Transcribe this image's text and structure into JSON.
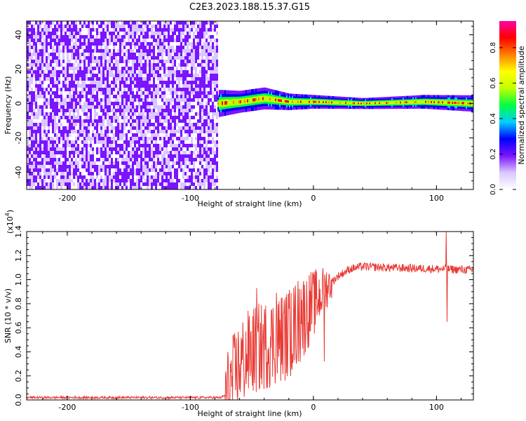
{
  "title": "C2E3.2023.188.15.37.G15",
  "chart_data": [
    {
      "type": "heatmap",
      "xlabel": "Height of straight line (km)",
      "ylabel": "Frequency (Hz)",
      "xlim": [
        -233,
        130
      ],
      "ylim": [
        -50,
        48
      ],
      "xticks": [
        -200,
        -100,
        0,
        100
      ],
      "yticks": [
        -40,
        -20,
        0,
        20,
        40
      ],
      "noise_region_x": [
        -233,
        -78
      ],
      "signal_band": [
        {
          "x": -78,
          "f": 0,
          "width_hz": 5
        },
        {
          "x": -60,
          "f": 1,
          "width_hz": 4
        },
        {
          "x": -40,
          "f": 3,
          "width_hz": 4
        },
        {
          "x": -20,
          "f": 1,
          "width_hz": 3
        },
        {
          "x": 0,
          "f": 1,
          "width_hz": 2.5
        },
        {
          "x": 40,
          "f": 0,
          "width_hz": 2
        },
        {
          "x": 90,
          "f": 1,
          "width_hz": 2.5
        },
        {
          "x": 130,
          "f": 0,
          "width_hz": 3
        }
      ],
      "colorbar": {
        "label": "Normalized spectral amplitude",
        "range": [
          0,
          0.95
        ],
        "ticks": [
          "0.0",
          "0.2",
          "0.4",
          "0.6",
          "0.8"
        ],
        "colors": [
          "#ffffff",
          "#d9c8ff",
          "#7b14ff",
          "#0000ff",
          "#00d0ff",
          "#00ff40",
          "#c0ff00",
          "#ffff00",
          "#ff8000",
          "#ff0000",
          "#ff00a0"
        ]
      }
    },
    {
      "type": "line",
      "xlabel": "Height of straight line (km)",
      "ylabel": "SNR (10 * v/v)",
      "y_multiplier": "(x10",
      "y_exponent": "4",
      "y_multiplier_close": ")",
      "xlim": [
        -233,
        130
      ],
      "ylim": [
        0,
        1.4
      ],
      "xticks": [
        -200,
        -100,
        0,
        100
      ],
      "yticks": [
        "0.0",
        "0.2",
        "0.4",
        "0.6",
        "0.8",
        "1.0",
        "1.2",
        "1.4"
      ],
      "color": "#e83a34",
      "series_profile": [
        {
          "x": -233,
          "y": 0.02
        },
        {
          "x": -75,
          "y": 0.02
        },
        {
          "x": -70,
          "y": 0.05
        },
        {
          "x": -66,
          "y": 0.15
        },
        {
          "x": -60,
          "y": 0.3
        },
        {
          "x": -50,
          "y": 0.4
        },
        {
          "x": -40,
          "y": 0.45
        },
        {
          "x": -30,
          "y": 0.5
        },
        {
          "x": -20,
          "y": 0.55
        },
        {
          "x": -10,
          "y": 0.68
        },
        {
          "x": 0,
          "y": 0.8
        },
        {
          "x": 10,
          "y": 0.93
        },
        {
          "x": 20,
          "y": 1.03
        },
        {
          "x": 30,
          "y": 1.09
        },
        {
          "x": 40,
          "y": 1.11
        },
        {
          "x": 60,
          "y": 1.1
        },
        {
          "x": 100,
          "y": 1.09
        },
        {
          "x": 130,
          "y": 1.08
        }
      ],
      "spikes": [
        {
          "x": -46,
          "y": 0.93
        },
        {
          "x": -30,
          "y": 0.89
        },
        {
          "x": -18,
          "y": 0.89
        },
        {
          "x": -10,
          "y": 0.92
        },
        {
          "x": 108,
          "y": 1.4
        },
        {
          "x": 108.5,
          "y": 0.65
        },
        {
          "x": 9,
          "y": 0.32
        }
      ]
    }
  ]
}
